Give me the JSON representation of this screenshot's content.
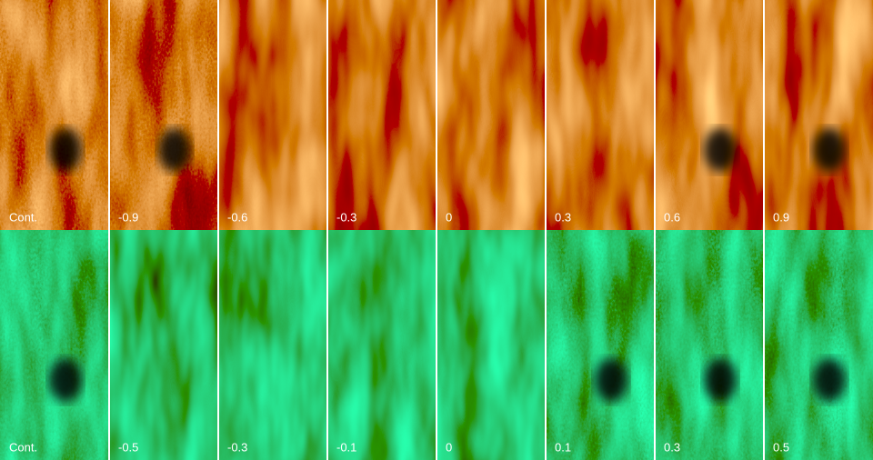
{
  "panels": {
    "top": [
      "Cont.",
      "-0.9",
      "-0.6",
      "-0.3",
      "0",
      "0.3",
      "0.6",
      "0.9"
    ],
    "bottom": [
      "Cont.",
      "-0.5",
      "-0.3",
      "-0.1",
      "0",
      "0.1",
      "0.3",
      "0.5"
    ]
  }
}
